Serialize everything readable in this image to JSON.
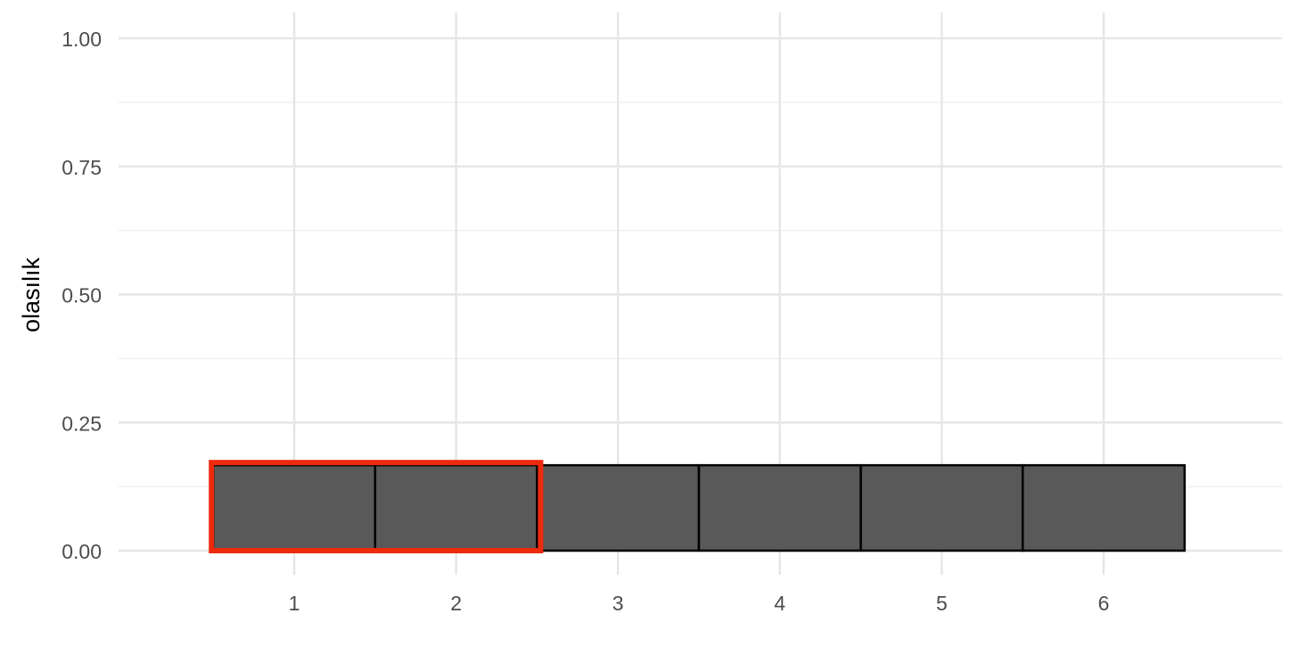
{
  "chart_data": {
    "type": "bar",
    "title": "",
    "xlabel": "",
    "ylabel": "olasılık",
    "categories": [
      "1",
      "2",
      "3",
      "4",
      "5",
      "6"
    ],
    "values": [
      0.1667,
      0.1667,
      0.1667,
      0.1667,
      0.1667,
      0.1667
    ],
    "ylim": [
      0,
      1
    ],
    "yticks": [
      "0.00",
      "0.25",
      "0.50",
      "0.75",
      "1.00"
    ],
    "grid": true,
    "bar_fill": "#595959",
    "bar_outline": "#000000",
    "highlight": {
      "categories": [
        "1",
        "2"
      ],
      "color": "#ee2a0c"
    }
  }
}
